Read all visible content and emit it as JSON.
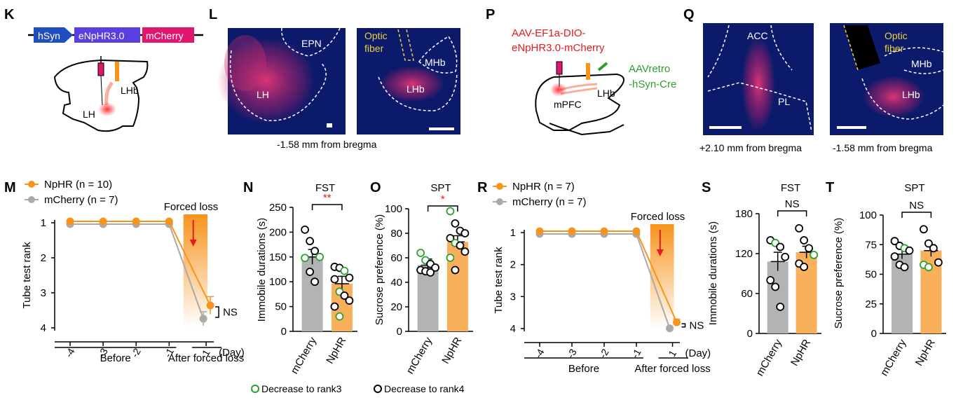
{
  "colors": {
    "orange": "#f7941d",
    "gray": "#aaaaaa",
    "bar_orange": "#f9b05a",
    "bar_gray": "#b3b3b3",
    "red": "#e41a1c",
    "green": "#2ca02c",
    "micro_bg": "#0b1a6b",
    "hsyn": "#1f4fbf",
    "enphr": "#5a3fe0",
    "mcherry": "#e0156e",
    "yellow": "#f0d03a"
  },
  "panels": {
    "K": {
      "letter": "K",
      "construct": [
        "hSyn",
        "eNpHR3.0",
        "mCherry"
      ],
      "labels": {
        "lhb": "LHb",
        "lh": "LH"
      }
    },
    "L": {
      "letter": "L",
      "left_labels": {
        "epn": "EPN",
        "lh": "LH"
      },
      "right_labels": {
        "fiber": [
          "Optic",
          "fiber"
        ],
        "mhb": "MHb",
        "lhb": "LHb"
      },
      "caption": "-1.58 mm from bregma"
    },
    "P": {
      "letter": "P",
      "virus_red": [
        "AAV-EF1a-DIO-",
        "eNpHR3.0-mCherry"
      ],
      "virus_green": [
        "AAVretro",
        "-hSyn-Cre"
      ],
      "labels": {
        "mpfc": "mPFC",
        "lhb": "LHb"
      }
    },
    "Q": {
      "letter": "Q",
      "left_labels": {
        "acc": "ACC",
        "pl": "PL"
      },
      "right_labels": {
        "fiber": [
          "Optic",
          "fiber"
        ],
        "mhb": "MHb",
        "lhb": "LHb"
      },
      "captions": [
        "+2.10 mm from bregma",
        "-1.58 mm from bregma"
      ]
    }
  },
  "chart_data": [
    {
      "id": "M",
      "letter": "M",
      "type": "line",
      "ylabel": "Tube test rank",
      "ylim": [
        1,
        4
      ],
      "yticks": [
        1,
        2,
        3,
        4
      ],
      "xticks": [
        "-4",
        "-3",
        "-2",
        "-1",
        "1"
      ],
      "xunit": "(Day)",
      "groups": [
        "Before",
        "After forced loss"
      ],
      "annotation": "Forced loss",
      "sig": "NS",
      "series": [
        {
          "name": "NpHR (n = 10)",
          "values": [
            1,
            1,
            1,
            1,
            3.4
          ],
          "err": [
            0,
            0,
            0,
            0,
            0.25
          ]
        },
        {
          "name": "mCherry (n = 7)",
          "values": [
            1,
            1,
            1,
            1,
            3.7
          ],
          "err": [
            0,
            0,
            0,
            0,
            0.2
          ]
        }
      ]
    },
    {
      "id": "N",
      "letter": "N",
      "type": "bar",
      "title": "FST",
      "ylabel": "Immobile durations (s)",
      "ylim": [
        0,
        250
      ],
      "yticks": [
        0,
        50,
        100,
        150,
        200,
        250
      ],
      "categories": [
        "mCherry",
        "NpHR"
      ],
      "values": [
        150,
        96
      ],
      "err": [
        15,
        15
      ],
      "sig": "**",
      "points": [
        [
          {
            "y": 205,
            "g": 0
          },
          {
            "y": 182,
            "g": 0
          },
          {
            "y": 162,
            "g": 0
          },
          {
            "y": 150,
            "g": 1
          },
          {
            "y": 148,
            "g": 1
          },
          {
            "y": 120,
            "g": 0
          },
          {
            "y": 100,
            "g": 0
          }
        ],
        [
          {
            "y": 130,
            "g": 0
          },
          {
            "y": 128,
            "g": 0
          },
          {
            "y": 122,
            "g": 1
          },
          {
            "y": 108,
            "g": 0
          },
          {
            "y": 105,
            "g": 0
          },
          {
            "y": 80,
            "g": 1
          },
          {
            "y": 72,
            "g": 0
          },
          {
            "y": 62,
            "g": 0
          },
          {
            "y": 50,
            "g": 0
          },
          {
            "y": 30,
            "g": 1
          }
        ]
      ]
    },
    {
      "id": "O",
      "letter": "O",
      "type": "bar",
      "title": "SPT",
      "ylabel": "Sucrose preference (%)",
      "ylim": [
        0,
        100
      ],
      "yticks": [
        0,
        20,
        40,
        60,
        80,
        100
      ],
      "categories": [
        "mCherry",
        "NpHR"
      ],
      "values": [
        54,
        73
      ],
      "err": [
        5,
        5
      ],
      "sig": "*",
      "points": [
        [
          {
            "y": 64,
            "g": 1
          },
          {
            "y": 58,
            "g": 1
          },
          {
            "y": 55,
            "g": 0
          },
          {
            "y": 52,
            "g": 0
          },
          {
            "y": 50,
            "g": 0
          },
          {
            "y": 49,
            "g": 0
          },
          {
            "y": 48,
            "g": 0
          }
        ],
        [
          {
            "y": 98,
            "g": 1
          },
          {
            "y": 88,
            "g": 0
          },
          {
            "y": 82,
            "g": 0
          },
          {
            "y": 80,
            "g": 0
          },
          {
            "y": 76,
            "g": 0
          },
          {
            "y": 72,
            "g": 1
          },
          {
            "y": 70,
            "g": 0
          },
          {
            "y": 65,
            "g": 0
          },
          {
            "y": 60,
            "g": 1
          },
          {
            "y": 50,
            "g": 0
          }
        ]
      ]
    },
    {
      "id": "R",
      "letter": "R",
      "type": "line",
      "ylabel": "Tube test rank",
      "ylim": [
        1,
        4
      ],
      "yticks": [
        1,
        2,
        3,
        4
      ],
      "xticks": [
        "-4",
        "-3",
        "-2",
        "-1",
        "1"
      ],
      "xunit": "(Day)",
      "groups": [
        "Before",
        "After forced loss"
      ],
      "annotation": "Forced loss",
      "sig": "NS",
      "series": [
        {
          "name": "NpHR (n = 7)",
          "values": [
            1,
            1,
            1,
            1,
            3.85
          ],
          "err": [
            0,
            0,
            0,
            0,
            0.1
          ]
        },
        {
          "name": "mCherry (n = 7)",
          "values": [
            1,
            1,
            1,
            1,
            3.95
          ],
          "err": [
            0,
            0,
            0,
            0,
            0.05
          ]
        }
      ]
    },
    {
      "id": "S",
      "letter": "S",
      "type": "bar",
      "title": "FST",
      "ylabel": "Immobile durations (s)",
      "ylim": [
        0,
        180
      ],
      "yticks": [
        0,
        60,
        120,
        180
      ],
      "categories": [
        "mCherry",
        "NpHR"
      ],
      "values": [
        108,
        122
      ],
      "err": [
        14,
        9
      ],
      "sig": "NS",
      "points": [
        [
          {
            "y": 140,
            "g": 0
          },
          {
            "y": 136,
            "g": 1
          },
          {
            "y": 130,
            "g": 0
          },
          {
            "y": 115,
            "g": 0
          },
          {
            "y": 80,
            "g": 0
          },
          {
            "y": 70,
            "g": 0
          },
          {
            "y": 40,
            "g": 0
          }
        ],
        [
          {
            "y": 158,
            "g": 0
          },
          {
            "y": 140,
            "g": 0
          },
          {
            "y": 128,
            "g": 0
          },
          {
            "y": 118,
            "g": 1
          },
          {
            "y": 105,
            "g": 0
          },
          {
            "y": 100,
            "g": 0
          }
        ]
      ]
    },
    {
      "id": "T",
      "letter": "T",
      "type": "bar",
      "title": "SPT",
      "ylabel": "Sucrose preference (%)",
      "ylim": [
        0,
        100
      ],
      "yticks": [
        0,
        25,
        50,
        75,
        100
      ],
      "categories": [
        "mCherry",
        "NpHR"
      ],
      "values": [
        67,
        70
      ],
      "err": [
        4,
        5
      ],
      "sig": "NS",
      "points": [
        [
          {
            "y": 78,
            "g": 0
          },
          {
            "y": 74,
            "g": 0
          },
          {
            "y": 72,
            "g": 1
          },
          {
            "y": 70,
            "g": 0
          },
          {
            "y": 65,
            "g": 0
          },
          {
            "y": 58,
            "g": 0
          },
          {
            "y": 56,
            "g": 0
          }
        ],
        [
          {
            "y": 88,
            "g": 0
          },
          {
            "y": 76,
            "g": 0
          },
          {
            "y": 72,
            "g": 0
          },
          {
            "y": 60,
            "g": 0
          },
          {
            "y": 58,
            "g": 1
          },
          {
            "y": 56,
            "g": 1
          }
        ]
      ]
    }
  ],
  "legend": {
    "green": "Decrease to rank3",
    "black": "Decrease to rank4"
  }
}
